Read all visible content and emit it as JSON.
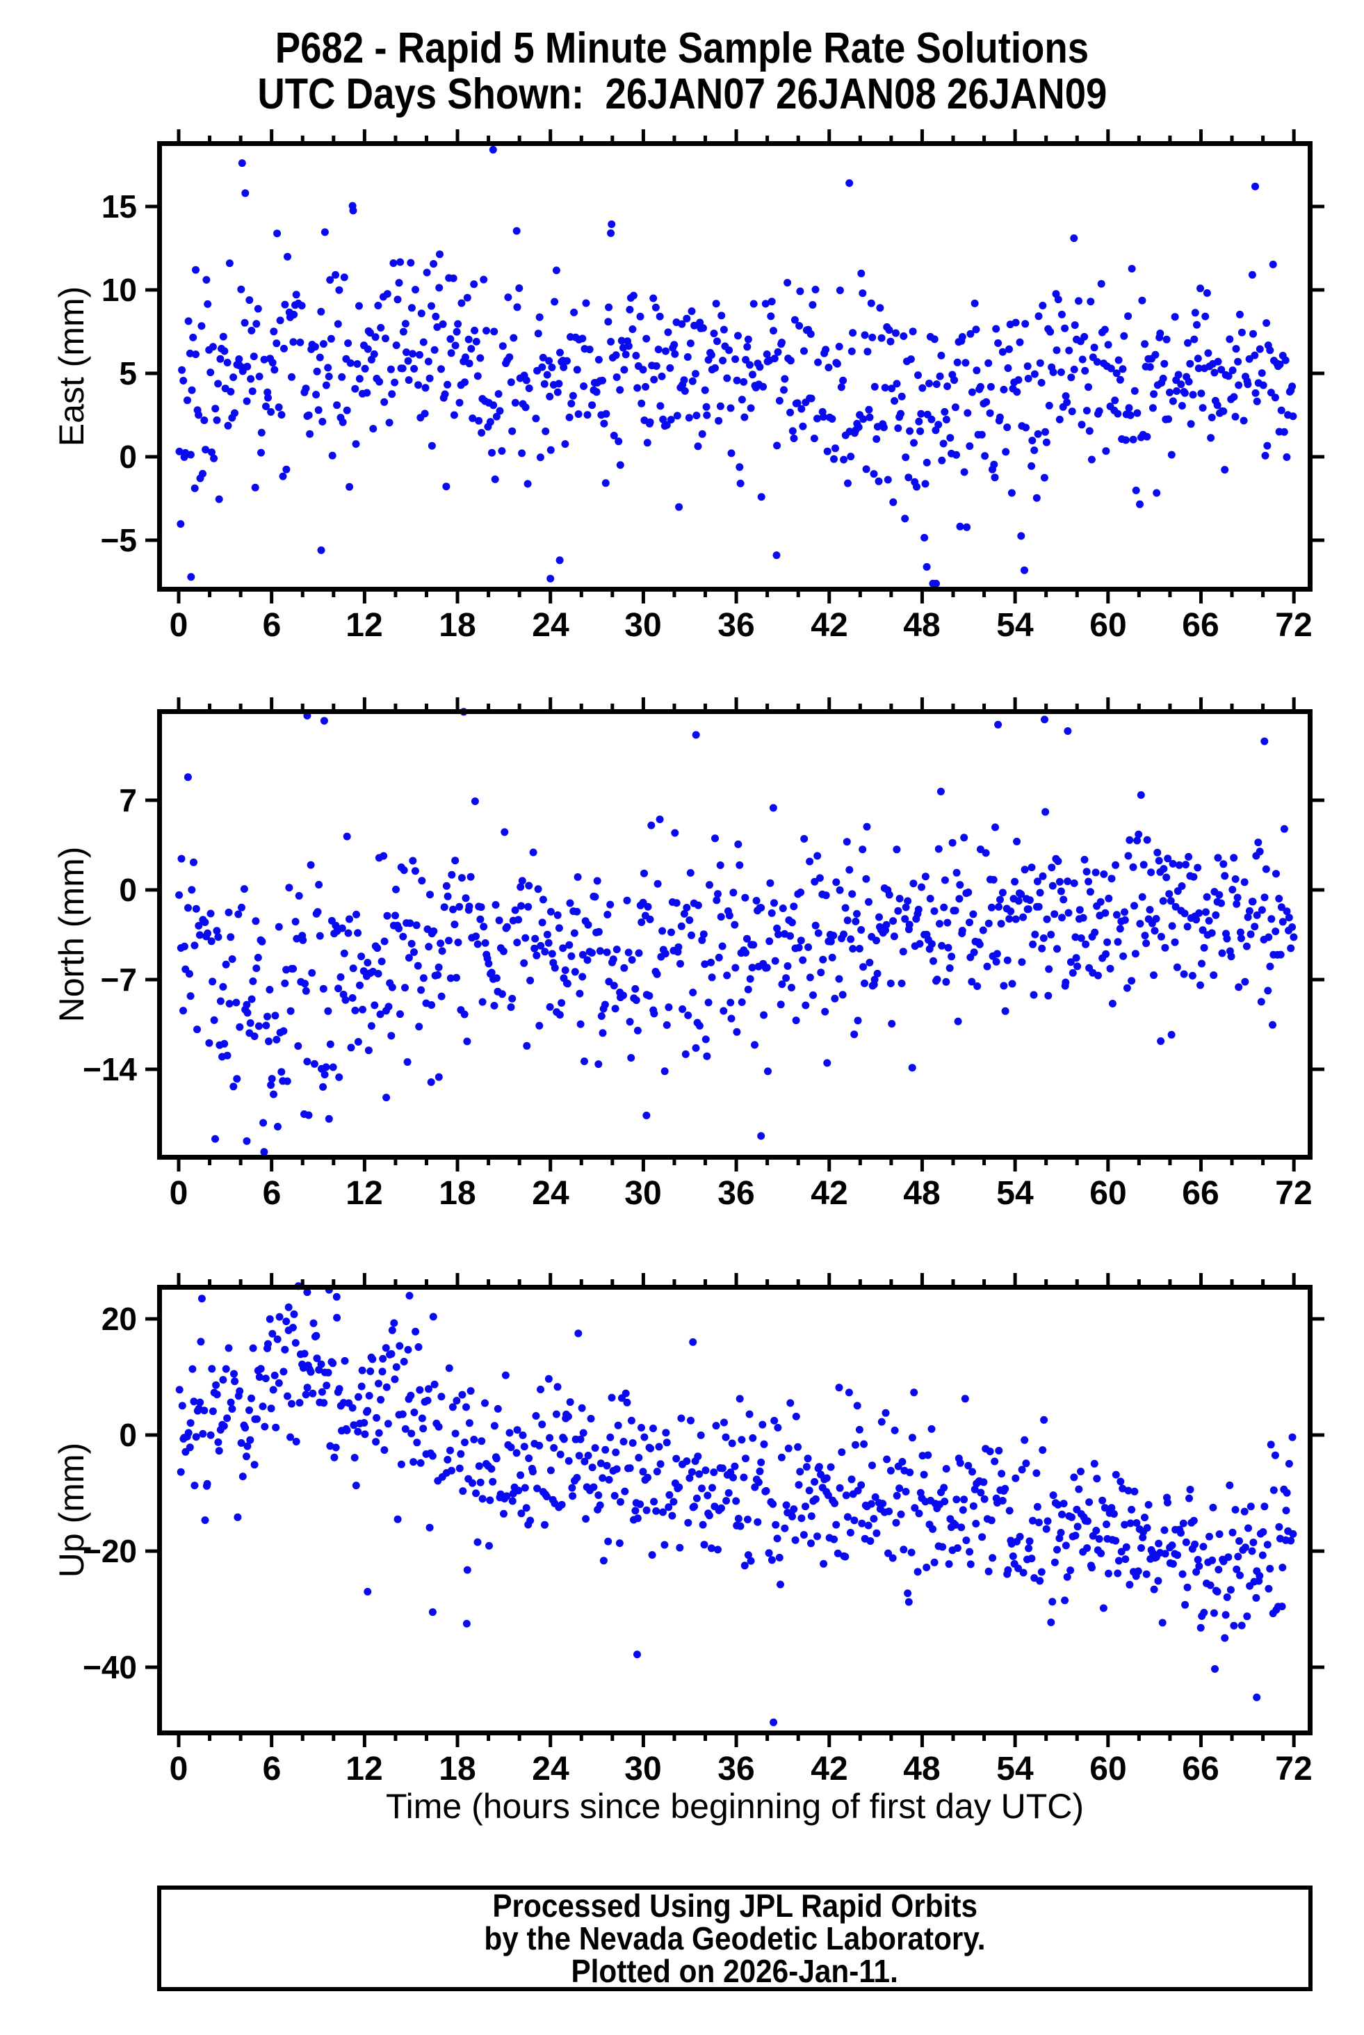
{
  "title": {
    "line1": "P682 - Rapid 5 Minute Sample Rate Solutions",
    "line2": "UTC Days Shown:  26JAN07 26JAN08 26JAN09"
  },
  "xlabel": "Time (hours since beginning of first day UTC)",
  "footer": {
    "line1": "Processed Using JPL Rapid Orbits",
    "line2": "by the Nevada Geodetic Laboratory.",
    "line3": "Plotted on 2026-Jan-11."
  },
  "colors": {
    "point": "#0a0af0",
    "frame": "#000000",
    "background": "#ffffff"
  },
  "chart_data": [
    {
      "type": "scatter",
      "name": "east",
      "ylabel": "East (mm)",
      "xlim": [
        -1.3,
        73.0
      ],
      "ylim": [
        -8.1,
        18.9
      ],
      "xticks": {
        "values": [
          0,
          6,
          12,
          18,
          24,
          30,
          36,
          42,
          48,
          54,
          60,
          66,
          72
        ],
        "labels": [
          "0",
          "6",
          "12",
          "18",
          "24",
          "30",
          "36",
          "42",
          "48",
          "54",
          "60",
          "66",
          "72"
        ],
        "minor_step": 2
      },
      "yticks": {
        "values": [
          15,
          10,
          5,
          0,
          -5
        ],
        "labels": [
          "15",
          "10",
          "5",
          "0",
          "−5"
        ]
      },
      "grid": false,
      "legend": null,
      "sampling": {
        "n": 864,
        "t_start": 0,
        "t_end": 72,
        "gap_prob": 0.05,
        "seed": 11
      },
      "trend": [
        [
          0,
          3
        ],
        [
          2,
          3.5
        ],
        [
          4,
          5
        ],
        [
          6,
          5
        ],
        [
          8,
          5.5
        ],
        [
          10,
          6
        ],
        [
          12,
          6.5
        ],
        [
          14,
          6.5
        ],
        [
          16,
          6
        ],
        [
          18,
          5.5
        ],
        [
          20,
          5
        ],
        [
          22,
          4.5
        ],
        [
          24,
          4.5
        ],
        [
          26,
          4.5
        ],
        [
          28,
          5
        ],
        [
          30,
          5
        ],
        [
          32,
          5
        ],
        [
          34,
          4.5
        ],
        [
          36,
          5
        ],
        [
          38,
          5
        ],
        [
          40,
          5
        ],
        [
          42,
          4.5
        ],
        [
          44,
          4
        ],
        [
          46,
          3.5
        ],
        [
          48,
          2.5
        ],
        [
          50,
          3
        ],
        [
          52,
          3.5
        ],
        [
          54,
          4
        ],
        [
          56,
          4.5
        ],
        [
          58,
          5
        ],
        [
          60,
          4.5
        ],
        [
          62,
          4.5
        ],
        [
          64,
          4.5
        ],
        [
          66,
          5
        ],
        [
          68,
          5
        ],
        [
          70,
          5
        ],
        [
          72,
          4
        ]
      ],
      "sigma": [
        [
          0,
          3.2
        ],
        [
          12,
          3
        ],
        [
          24,
          3
        ],
        [
          36,
          3
        ],
        [
          48,
          3.4
        ],
        [
          60,
          2.6
        ],
        [
          72,
          2.4
        ]
      ],
      "outliers": [
        [
          0.8,
          -7.2
        ],
        [
          1.1,
          11.2
        ],
        [
          4.1,
          17.6
        ],
        [
          4.3,
          15.8
        ],
        [
          9.2,
          -5.6
        ],
        [
          20.3,
          18.4
        ],
        [
          24.0,
          -7.3
        ],
        [
          24.6,
          -6.2
        ],
        [
          27.9,
          13.4
        ],
        [
          38.6,
          -5.9
        ],
        [
          43.3,
          16.4
        ],
        [
          48.3,
          -6.6
        ],
        [
          48.9,
          -7.6
        ],
        [
          54.6,
          -6.8
        ],
        [
          57.8,
          13.1
        ],
        [
          69.5,
          16.2
        ]
      ]
    },
    {
      "type": "scatter",
      "name": "north",
      "ylabel": "North (mm)",
      "xlim": [
        -1.3,
        73.0
      ],
      "ylim": [
        -21.0,
        14.1
      ],
      "xticks": {
        "values": [
          0,
          6,
          12,
          18,
          24,
          30,
          36,
          42,
          48,
          54,
          60,
          66,
          72
        ],
        "labels": [
          "0",
          "6",
          "12",
          "18",
          "24",
          "30",
          "36",
          "42",
          "48",
          "54",
          "60",
          "66",
          "72"
        ],
        "minor_step": 2
      },
      "yticks": {
        "values": [
          7,
          0,
          -7,
          -14
        ],
        "labels": [
          "7",
          "0",
          "−7",
          "−14"
        ]
      },
      "grid": false,
      "legend": null,
      "sampling": {
        "n": 864,
        "t_start": 0,
        "t_end": 72,
        "gap_prob": 0.05,
        "seed": 22
      },
      "trend": [
        [
          0,
          -2
        ],
        [
          1,
          -5
        ],
        [
          2,
          -7
        ],
        [
          3,
          -8
        ],
        [
          4,
          -9
        ],
        [
          6,
          -9
        ],
        [
          8,
          -8.5
        ],
        [
          10,
          -7.5
        ],
        [
          12,
          -6
        ],
        [
          14,
          -5
        ],
        [
          16,
          -5
        ],
        [
          18,
          -3.5
        ],
        [
          20,
          -4
        ],
        [
          22,
          -5
        ],
        [
          24,
          -5
        ],
        [
          26,
          -5.5
        ],
        [
          28,
          -5
        ],
        [
          30,
          -5.5
        ],
        [
          32,
          -5.5
        ],
        [
          34,
          -6
        ],
        [
          36,
          -5.5
        ],
        [
          38,
          -5
        ],
        [
          40,
          -4.5
        ],
        [
          42,
          -3.5
        ],
        [
          44,
          -3
        ],
        [
          46,
          -3.5
        ],
        [
          48,
          -3.5
        ],
        [
          50,
          -3
        ],
        [
          52,
          -2.5
        ],
        [
          54,
          -2
        ],
        [
          56,
          -1.5
        ],
        [
          58,
          -1.5
        ],
        [
          60,
          -1
        ],
        [
          62,
          -1.5
        ],
        [
          64,
          -2
        ],
        [
          66,
          -2
        ],
        [
          68,
          -2.5
        ],
        [
          70,
          -2.5
        ],
        [
          72,
          -4
        ]
      ],
      "sigma": [
        [
          0,
          3.5
        ],
        [
          4,
          4.5
        ],
        [
          8,
          4.5
        ],
        [
          12,
          4
        ],
        [
          16,
          4.5
        ],
        [
          20,
          3.5
        ],
        [
          24,
          3.8
        ],
        [
          28,
          3.8
        ],
        [
          32,
          4
        ],
        [
          36,
          4.2
        ],
        [
          40,
          3.8
        ],
        [
          44,
          3.5
        ],
        [
          48,
          3.5
        ],
        [
          52,
          3.5
        ],
        [
          56,
          3.5
        ],
        [
          60,
          3
        ],
        [
          64,
          3.2
        ],
        [
          68,
          3
        ],
        [
          72,
          3
        ]
      ],
      "outliers": [
        [
          0.6,
          8.8
        ],
        [
          4.4,
          -19.6
        ],
        [
          8.1,
          -17.5
        ],
        [
          8.3,
          13.6
        ],
        [
          9.4,
          13.2
        ],
        [
          13.4,
          -16.2
        ],
        [
          16.3,
          -15.0
        ],
        [
          16.8,
          -14.6
        ],
        [
          18.4,
          13.9
        ],
        [
          27.1,
          -13.6
        ],
        [
          30.2,
          -17.6
        ],
        [
          33.4,
          12.1
        ],
        [
          37.6,
          -19.2
        ],
        [
          52.9,
          12.9
        ],
        [
          55.9,
          13.3
        ],
        [
          57.4,
          12.4
        ],
        [
          63.4,
          -11.8
        ],
        [
          64.1,
          -11.3
        ],
        [
          70.1,
          11.6
        ]
      ]
    },
    {
      "type": "scatter",
      "name": "up",
      "ylabel": "Up (mm)",
      "xlim": [
        -1.3,
        73.0
      ],
      "ylim": [
        -51.7,
        25.9
      ],
      "xticks": {
        "values": [
          0,
          6,
          12,
          18,
          24,
          30,
          36,
          42,
          48,
          54,
          60,
          66,
          72
        ],
        "labels": [
          "0",
          "6",
          "12",
          "18",
          "24",
          "30",
          "36",
          "42",
          "48",
          "54",
          "60",
          "66",
          "72"
        ],
        "minor_step": 2
      },
      "yticks": {
        "values": [
          20,
          0,
          -20,
          -40
        ],
        "labels": [
          "20",
          "0",
          "−20",
          "−40"
        ]
      },
      "grid": false,
      "legend": null,
      "sampling": {
        "n": 864,
        "t_start": 0,
        "t_end": 72,
        "gap_prob": 0.05,
        "seed": 33
      },
      "trend": [
        [
          0,
          2
        ],
        [
          1,
          1
        ],
        [
          2,
          0
        ],
        [
          3,
          2
        ],
        [
          4,
          4
        ],
        [
          5,
          7
        ],
        [
          6,
          9
        ],
        [
          7,
          11
        ],
        [
          8,
          12
        ],
        [
          9,
          12
        ],
        [
          10,
          8
        ],
        [
          11,
          4
        ],
        [
          12,
          3
        ],
        [
          13,
          5
        ],
        [
          14,
          7
        ],
        [
          15,
          7
        ],
        [
          16,
          3
        ],
        [
          17,
          -1
        ],
        [
          18,
          -4
        ],
        [
          19,
          -6
        ],
        [
          20,
          -7
        ],
        [
          22,
          -7
        ],
        [
          24,
          -5
        ],
        [
          26,
          -4
        ],
        [
          28,
          -6
        ],
        [
          30,
          -8
        ],
        [
          32,
          -9
        ],
        [
          34,
          -9
        ],
        [
          36,
          -10
        ],
        [
          38,
          -11
        ],
        [
          40,
          -11
        ],
        [
          42,
          -10
        ],
        [
          44,
          -9.5
        ],
        [
          46,
          -11
        ],
        [
          48,
          -13
        ],
        [
          50,
          -14
        ],
        [
          52,
          -13
        ],
        [
          54,
          -14
        ],
        [
          56,
          -15
        ],
        [
          58,
          -14.5
        ],
        [
          60,
          -16
        ],
        [
          62,
          -18
        ],
        [
          64,
          -20
        ],
        [
          66,
          -22
        ],
        [
          68,
          -24
        ],
        [
          70,
          -23
        ],
        [
          71,
          -18
        ],
        [
          72,
          -13
        ]
      ],
      "sigma": [
        [
          0,
          6
        ],
        [
          4,
          7
        ],
        [
          8,
          7
        ],
        [
          12,
          7
        ],
        [
          16,
          8
        ],
        [
          20,
          7
        ],
        [
          24,
          6.5
        ],
        [
          28,
          7
        ],
        [
          32,
          7
        ],
        [
          36,
          7
        ],
        [
          40,
          7
        ],
        [
          44,
          7
        ],
        [
          48,
          7
        ],
        [
          52,
          6.5
        ],
        [
          56,
          6.5
        ],
        [
          60,
          6.5
        ],
        [
          64,
          6.5
        ],
        [
          68,
          7
        ],
        [
          72,
          6
        ]
      ],
      "outliers": [
        [
          1.5,
          23.5
        ],
        [
          7.1,
          22
        ],
        [
          8.3,
          24.6
        ],
        [
          10.2,
          23.8
        ],
        [
          12.2,
          -27
        ],
        [
          14.9,
          24
        ],
        [
          16.4,
          -30.5
        ],
        [
          18.6,
          -32.5
        ],
        [
          25.8,
          17.5
        ],
        [
          29.6,
          -37.8
        ],
        [
          33.2,
          16
        ],
        [
          38.4,
          -49.5
        ],
        [
          66.9,
          -40.3
        ],
        [
          69.6,
          -45.2
        ],
        [
          70.8,
          -3.5
        ],
        [
          71.5,
          -13
        ]
      ]
    }
  ]
}
